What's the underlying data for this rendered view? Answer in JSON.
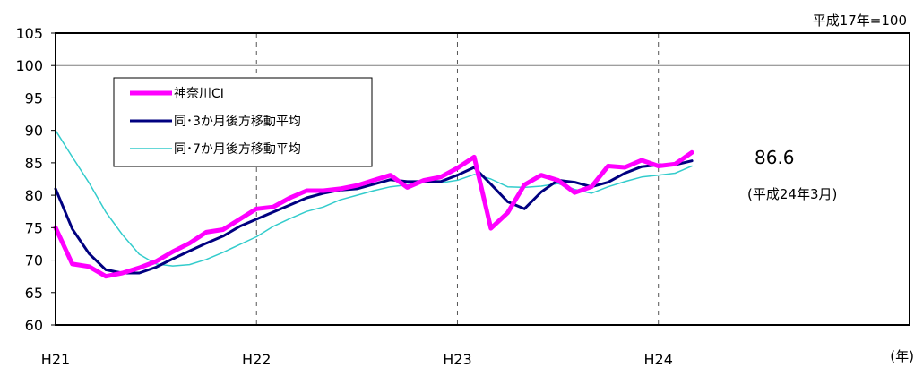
{
  "chart_data": {
    "type": "line",
    "title": "",
    "base_note": "平成17年=100",
    "xlabel": "(年)",
    "ylabel": "",
    "ylim": [
      60,
      105
    ],
    "yticks": [
      60,
      65,
      70,
      75,
      80,
      85,
      90,
      95,
      100,
      105
    ],
    "xlim": [
      0,
      51
    ],
    "xticks": [
      {
        "x": 0,
        "label": "H21"
      },
      {
        "x": 12,
        "label": "H22"
      },
      {
        "x": 24,
        "label": "H23"
      },
      {
        "x": 36,
        "label": "H24"
      }
    ],
    "reference_line": 100,
    "legend_position": "top-left",
    "series": [
      {
        "name": "神奈川CI",
        "color": "#ff00ff",
        "width": 5,
        "values": [
          75,
          69.4,
          69,
          67.5,
          68,
          68.8,
          69.8,
          71.3,
          72.6,
          74.3,
          74.7,
          76.3,
          77.9,
          78.2,
          79.6,
          80.7,
          80.7,
          81,
          81.5,
          82.3,
          83.1,
          81.2,
          82.3,
          82.8,
          84.2,
          85.9,
          74.9,
          77.3,
          81.6,
          83.1,
          82.3,
          80.4,
          81.3,
          84.5,
          84.3,
          85.4,
          84.5,
          84.8,
          86.6
        ]
      },
      {
        "name": "同･3か月後方移動平均",
        "color": "#000080",
        "width": 3,
        "values": [
          81,
          74.8,
          71,
          68.5,
          68,
          68,
          68.9,
          70.2,
          71.4,
          72.6,
          73.7,
          75.2,
          76.3,
          77.4,
          78.5,
          79.6,
          80.3,
          80.8,
          81,
          81.7,
          82.4,
          82.1,
          82.1,
          82.1,
          83.1,
          84.3,
          81.7,
          79,
          77.9,
          80.5,
          82.3,
          82,
          81.3,
          82,
          83.4,
          84.4,
          84.7,
          84.7,
          85.3
        ]
      },
      {
        "name": "同･7か月後方移動平均",
        "color": "#33cccc",
        "width": 1.5,
        "values": [
          90,
          85.9,
          81.9,
          77.4,
          73.9,
          70.9,
          69.4,
          69.1,
          69.3,
          70.1,
          71.2,
          72.4,
          73.6,
          75.2,
          76.4,
          77.5,
          78.2,
          79.3,
          80,
          80.7,
          81.3,
          81.6,
          82,
          81.9,
          82.3,
          83.2,
          82.5,
          81.3,
          81.2,
          81.4,
          81.8,
          80.9,
          80.3,
          81.3,
          82.1,
          82.8,
          83.1,
          83.4,
          84.5
        ]
      }
    ],
    "annotation": {
      "value_text": "86.6",
      "date_text": "(平成24年3月)"
    }
  }
}
